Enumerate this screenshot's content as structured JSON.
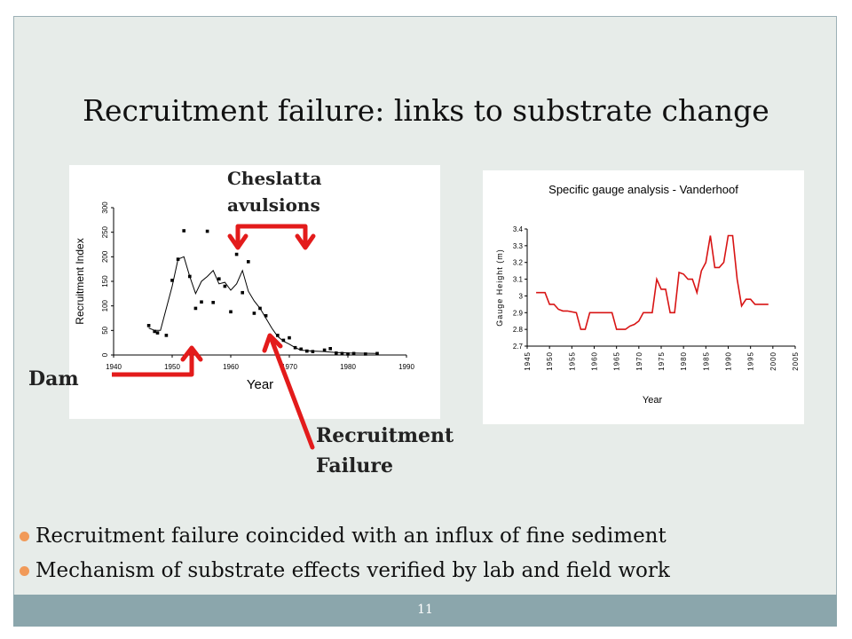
{
  "slide": {
    "title": "Recruitment failure: links to substrate change",
    "page_number": "11",
    "annotations": {
      "cheslatta_line1": "Cheslatta",
      "cheslatta_line2": "avulsions",
      "dam": "Dam",
      "failure_line1": "Recruitment",
      "failure_line2": "Failure"
    },
    "bullets": [
      "Recruitment failure coincided with an influx of fine sediment",
      "Mechanism of substrate effects verified by lab and field work"
    ],
    "colors": {
      "arrow": "#e31b1b",
      "bullet": "#f19a59",
      "footer": "#8ba6ac",
      "gauge_line": "#d81414"
    }
  },
  "chart_data": [
    {
      "type": "scatter",
      "title": "",
      "xlabel": "Year",
      "ylabel": "Recruitment Index",
      "xlim": [
        1940,
        1990
      ],
      "ylim": [
        0,
        300
      ],
      "x_ticks": [
        "1940",
        "1950",
        "1960",
        "1970",
        "1980",
        "1990"
      ],
      "y_ticks": [
        "0",
        "50",
        "100",
        "150",
        "200",
        "250",
        "300"
      ],
      "grid": false,
      "points": [
        {
          "x": 1946,
          "y": 60
        },
        {
          "x": 1947,
          "y": 48
        },
        {
          "x": 1947.5,
          "y": 45
        },
        {
          "x": 1949,
          "y": 40
        },
        {
          "x": 1950,
          "y": 152
        },
        {
          "x": 1951,
          "y": 195
        },
        {
          "x": 1952,
          "y": 253
        },
        {
          "x": 1953,
          "y": 160
        },
        {
          "x": 1954,
          "y": 95
        },
        {
          "x": 1955,
          "y": 108
        },
        {
          "x": 1956,
          "y": 252
        },
        {
          "x": 1957,
          "y": 107
        },
        {
          "x": 1958,
          "y": 155
        },
        {
          "x": 1959,
          "y": 140
        },
        {
          "x": 1960,
          "y": 88
        },
        {
          "x": 1961,
          "y": 205
        },
        {
          "x": 1962,
          "y": 127
        },
        {
          "x": 1963,
          "y": 190
        },
        {
          "x": 1964,
          "y": 85
        },
        {
          "x": 1965,
          "y": 95
        },
        {
          "x": 1966,
          "y": 80
        },
        {
          "x": 1968,
          "y": 40
        },
        {
          "x": 1969,
          "y": 30
        },
        {
          "x": 1970,
          "y": 35
        },
        {
          "x": 1971,
          "y": 15
        },
        {
          "x": 1972,
          "y": 12
        },
        {
          "x": 1973,
          "y": 8
        },
        {
          "x": 1974,
          "y": 7
        },
        {
          "x": 1976,
          "y": 10
        },
        {
          "x": 1977,
          "y": 13
        },
        {
          "x": 1978,
          "y": 4
        },
        {
          "x": 1979,
          "y": 3
        },
        {
          "x": 1980,
          "y": 2
        },
        {
          "x": 1981,
          "y": 3
        },
        {
          "x": 1983,
          "y": 2
        },
        {
          "x": 1985,
          "y": 3
        }
      ],
      "smooth_line": [
        {
          "x": 1946,
          "y": 55
        },
        {
          "x": 1947,
          "y": 50
        },
        {
          "x": 1948,
          "y": 50
        },
        {
          "x": 1949,
          "y": 95
        },
        {
          "x": 1950,
          "y": 140
        },
        {
          "x": 1951,
          "y": 195
        },
        {
          "x": 1952,
          "y": 200
        },
        {
          "x": 1953,
          "y": 160
        },
        {
          "x": 1954,
          "y": 125
        },
        {
          "x": 1955,
          "y": 150
        },
        {
          "x": 1956,
          "y": 160
        },
        {
          "x": 1957,
          "y": 172
        },
        {
          "x": 1958,
          "y": 145
        },
        {
          "x": 1959,
          "y": 148
        },
        {
          "x": 1960,
          "y": 132
        },
        {
          "x": 1961,
          "y": 145
        },
        {
          "x": 1962,
          "y": 172
        },
        {
          "x": 1963,
          "y": 130
        },
        {
          "x": 1964,
          "y": 110
        },
        {
          "x": 1965,
          "y": 95
        },
        {
          "x": 1966,
          "y": 75
        },
        {
          "x": 1967,
          "y": 55
        },
        {
          "x": 1968,
          "y": 38
        },
        {
          "x": 1969,
          "y": 28
        },
        {
          "x": 1970,
          "y": 22
        },
        {
          "x": 1971,
          "y": 15
        },
        {
          "x": 1972,
          "y": 10
        },
        {
          "x": 1974,
          "y": 8
        },
        {
          "x": 1976,
          "y": 7
        },
        {
          "x": 1978,
          "y": 5
        },
        {
          "x": 1980,
          "y": 4
        },
        {
          "x": 1985,
          "y": 3
        }
      ]
    },
    {
      "type": "line",
      "title": "Specific gauge analysis - Vanderhoof",
      "xlabel": "Year",
      "ylabel": "Gauge Height (m)",
      "xlim": [
        1945,
        2005
      ],
      "ylim": [
        2.7,
        3.4
      ],
      "x_ticks": [
        "1945",
        "1950",
        "1955",
        "1960",
        "1965",
        "1970",
        "1975",
        "1980",
        "1985",
        "1990",
        "1995",
        "2000",
        "2005"
      ],
      "y_ticks": [
        "2.7",
        "2.8",
        "2.9",
        "3",
        "3.1",
        "3.2",
        "3.3",
        "3.4"
      ],
      "grid": false,
      "series": [
        {
          "x": [
            1947,
            1949,
            1950,
            1951,
            1952,
            1953,
            1954,
            1956,
            1957,
            1958,
            1959,
            1960,
            1961,
            1962,
            1963,
            1964,
            1965,
            1966,
            1967,
            1968,
            1969,
            1970,
            1971,
            1972,
            1973,
            1974,
            1975,
            1976,
            1977,
            1978,
            1979,
            1980,
            1981,
            1982,
            1983,
            1984,
            1985,
            1986,
            1987,
            1988,
            1989,
            1990,
            1991,
            1992,
            1993,
            1994,
            1995,
            1996,
            1997,
            1998,
            1999
          ],
          "y": [
            3.02,
            3.02,
            2.95,
            2.95,
            2.92,
            2.91,
            2.91,
            2.9,
            2.8,
            2.8,
            2.9,
            2.9,
            2.9,
            2.9,
            2.9,
            2.9,
            2.8,
            2.8,
            2.8,
            2.82,
            2.83,
            2.85,
            2.9,
            2.9,
            2.9,
            3.1,
            3.04,
            3.04,
            2.9,
            2.9,
            3.14,
            3.13,
            3.1,
            3.1,
            3.02,
            3.15,
            3.2,
            3.36,
            3.17,
            3.17,
            3.2,
            3.36,
            3.36,
            3.1,
            2.94,
            2.98,
            2.98,
            2.95,
            2.95,
            2.95,
            2.95
          ]
        }
      ]
    }
  ]
}
